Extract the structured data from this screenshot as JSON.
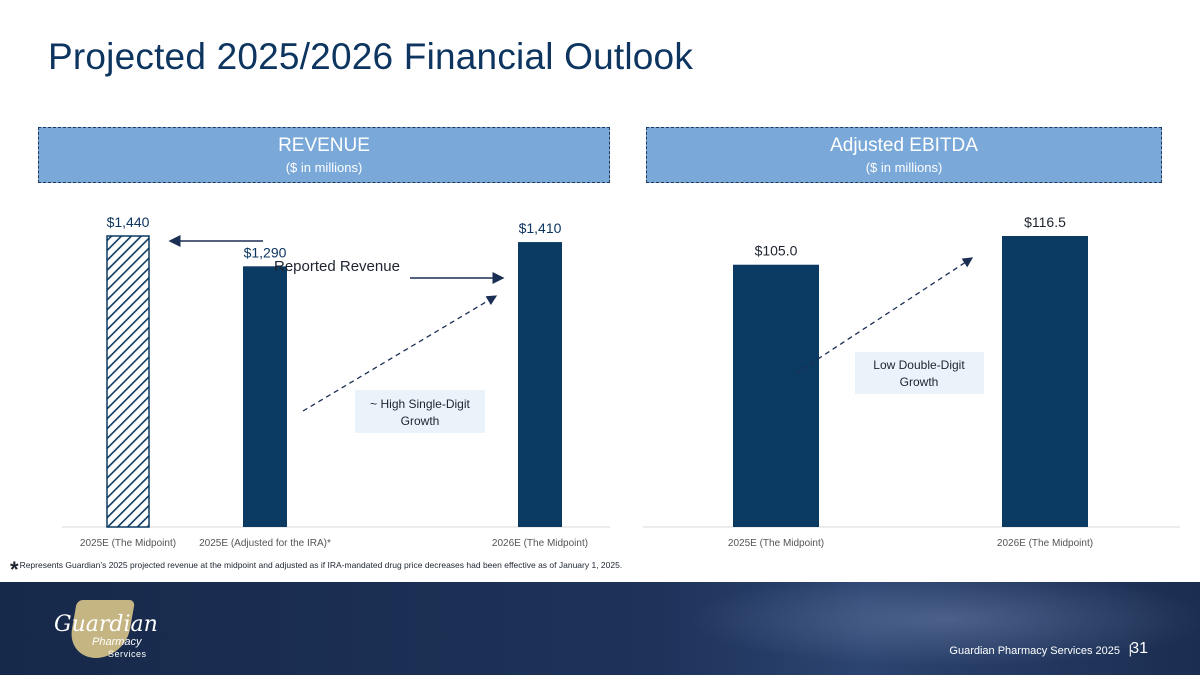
{
  "title": "Projected 2025/2026 Financial Outlook",
  "panels": {
    "left": {
      "header": "REVENUE",
      "subheader": "($ in millions)"
    },
    "right": {
      "header": "Adjusted EBITDA",
      "subheader": "($ in millions)"
    }
  },
  "chart_data": [
    {
      "type": "bar",
      "title": "REVENUE ($ in millions)",
      "categories": [
        "2025E (The Midpoint)",
        "2025E (Adjusted for the IRA)*",
        "2026E (The Midpoint)"
      ],
      "values": [
        1440,
        1290,
        1410
      ],
      "value_labels": [
        "$1,440",
        "$1,290",
        "$1,410"
      ],
      "bar_styles": [
        "hatched",
        "solid",
        "solid"
      ],
      "ylim": [
        0,
        1440
      ],
      "annotations": [
        {
          "text": "Reported Revenue"
        },
        {
          "text": "~ High Single-Digit Growth",
          "from": "2025E (Adjusted for the IRA)*",
          "to": "2026E (The Midpoint)"
        }
      ],
      "colors": {
        "bar": "#0b3a62",
        "hatch_bg": "#ffffff"
      }
    },
    {
      "type": "bar",
      "title": "Adjusted EBITDA ($ in millions)",
      "categories": [
        "2025E (The Midpoint)",
        "2026E (The Midpoint)"
      ],
      "values": [
        105.0,
        116.5
      ],
      "value_labels": [
        "$105.0",
        "$116.5"
      ],
      "ylim": [
        0,
        116.5
      ],
      "annotations": [
        {
          "text": "Low Double-Digit Growth",
          "from": "2025E (The Midpoint)",
          "to": "2026E (The Midpoint)"
        }
      ],
      "colors": {
        "bar": "#0b3a62"
      }
    }
  ],
  "footnote": {
    "marker": "*",
    "text": "Represents Guardian’s 2025 projected revenue at the midpoint and adjusted as if IRA-mandated drug price decreases had been effective as of January 1, 2025."
  },
  "footer": {
    "logo_name": "Guardian",
    "logo_line2": "Pharmacy",
    "logo_line3": "Services",
    "company": "Guardian Pharmacy Services 2025",
    "separator": "|",
    "page_number": "31"
  },
  "colors": {
    "title": "#0d3560",
    "header_bg": "#79a8d9",
    "bar": "#0b3a62",
    "annotation_bg": "#eaf2fa"
  }
}
